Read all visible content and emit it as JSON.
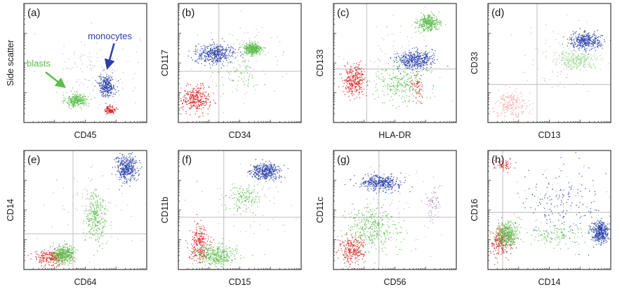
{
  "figure": {
    "type": "flow-cytometry-scatter-panel-grid"
  },
  "colors": {
    "blasts": "#5bbd4a",
    "monocytes": "#2a3fa8",
    "red_population": "#d92020",
    "background_events": "#b9b9b9",
    "quadrant_lines": "#bdbdbd",
    "frame": "#3a3a3a"
  },
  "chart_data": [
    {
      "panel": "(a)",
      "type": "scatter",
      "xlabel": "CD45",
      "ylabel": "Side scatter",
      "xlim": [
        0,
        1
      ],
      "ylim": [
        0,
        1
      ],
      "quadrant": null,
      "annotations": [
        {
          "text": "monocytes",
          "color": "#2a3fa8",
          "arrow": true,
          "x": 0.7,
          "y": 0.7,
          "arrow_to": [
            0.68,
            0.46
          ]
        },
        {
          "text": "blasts",
          "color": "#5bbd4a",
          "arrow": true,
          "x": 0.12,
          "y": 0.47,
          "arrow_to": [
            0.33,
            0.3
          ]
        }
      ],
      "series": [
        {
          "color": "#b9b9b9",
          "clusters": [
            {
              "cx": 0.55,
              "cy": 0.45,
              "sx": 0.35,
              "sy": 0.28,
              "n": 140
            }
          ]
        },
        {
          "color": "#5bbd4a",
          "clusters": [
            {
              "cx": 0.43,
              "cy": 0.19,
              "sx": 0.08,
              "sy": 0.05,
              "n": 280
            }
          ]
        },
        {
          "color": "#2a3fa8",
          "clusters": [
            {
              "cx": 0.67,
              "cy": 0.31,
              "sx": 0.06,
              "sy": 0.08,
              "n": 280
            }
          ]
        },
        {
          "color": "#d92020",
          "clusters": [
            {
              "cx": 0.7,
              "cy": 0.11,
              "sx": 0.04,
              "sy": 0.03,
              "n": 110
            }
          ]
        }
      ]
    },
    {
      "panel": "(b)",
      "type": "scatter",
      "xlabel": "CD34",
      "ylabel": "CD117",
      "xlim": [
        0,
        1
      ],
      "ylim": [
        0,
        1
      ],
      "quadrant": [
        0.33,
        0.43
      ],
      "annotations": [],
      "series": [
        {
          "color": "#b9b9b9",
          "clusters": [
            {
              "cx": 0.55,
              "cy": 0.55,
              "sx": 0.35,
              "sy": 0.3,
              "n": 90
            }
          ]
        },
        {
          "color": "#d92020",
          "clusters": [
            {
              "cx": 0.14,
              "cy": 0.2,
              "sx": 0.1,
              "sy": 0.1,
              "n": 300
            }
          ]
        },
        {
          "color": "#2a3fa8",
          "clusters": [
            {
              "cx": 0.3,
              "cy": 0.58,
              "sx": 0.15,
              "sy": 0.07,
              "n": 420
            }
          ]
        },
        {
          "color": "#5bbd4a",
          "clusters": [
            {
              "cx": 0.6,
              "cy": 0.62,
              "sx": 0.07,
              "sy": 0.05,
              "n": 340
            },
            {
              "cx": 0.48,
              "cy": 0.4,
              "sx": 0.15,
              "sy": 0.12,
              "n": 60
            }
          ]
        }
      ]
    },
    {
      "panel": "(c)",
      "type": "scatter",
      "xlabel": "HLA-DR",
      "ylabel": "CD133",
      "xlim": [
        0,
        1
      ],
      "ylim": [
        0,
        1
      ],
      "quadrant": [
        0.27,
        0.45
      ],
      "annotations": [],
      "series": [
        {
          "color": "#b9b9b9",
          "clusters": [
            {
              "cx": 0.55,
              "cy": 0.55,
              "sx": 0.35,
              "sy": 0.3,
              "n": 90
            }
          ]
        },
        {
          "color": "#5bbd4a",
          "clusters": [
            {
              "cx": 0.77,
              "cy": 0.84,
              "sx": 0.08,
              "sy": 0.06,
              "n": 330
            },
            {
              "cx": 0.55,
              "cy": 0.35,
              "sx": 0.18,
              "sy": 0.17,
              "n": 260
            }
          ]
        },
        {
          "color": "#2a3fa8",
          "clusters": [
            {
              "cx": 0.66,
              "cy": 0.53,
              "sx": 0.13,
              "sy": 0.07,
              "n": 420
            }
          ]
        },
        {
          "color": "#d92020",
          "clusters": [
            {
              "cx": 0.17,
              "cy": 0.36,
              "sx": 0.08,
              "sy": 0.11,
              "n": 300
            },
            {
              "cx": 0.68,
              "cy": 0.3,
              "sx": 0.05,
              "sy": 0.1,
              "n": 60
            }
          ]
        }
      ]
    },
    {
      "panel": "(d)",
      "type": "scatter",
      "xlabel": "CD13",
      "ylabel": "CD33",
      "xlim": [
        0,
        1
      ],
      "ylim": [
        0,
        1
      ],
      "quadrant": [
        0.4,
        0.32
      ],
      "annotations": [],
      "series": [
        {
          "color": "#b9b9b9",
          "clusters": [
            {
              "cx": 0.6,
              "cy": 0.55,
              "sx": 0.3,
              "sy": 0.25,
              "n": 90
            }
          ]
        },
        {
          "color": "#f0a8a8",
          "clusters": [
            {
              "cx": 0.19,
              "cy": 0.16,
              "sx": 0.12,
              "sy": 0.1,
              "n": 230
            }
          ]
        },
        {
          "color": "#a8dc9b",
          "clusters": [
            {
              "cx": 0.72,
              "cy": 0.53,
              "sx": 0.15,
              "sy": 0.07,
              "n": 320
            }
          ]
        },
        {
          "color": "#2a3fa8",
          "clusters": [
            {
              "cx": 0.79,
              "cy": 0.69,
              "sx": 0.12,
              "sy": 0.06,
              "n": 360
            }
          ]
        }
      ]
    },
    {
      "panel": "(e)",
      "type": "scatter",
      "xlabel": "CD64",
      "ylabel": "CD14",
      "xlim": [
        0,
        1
      ],
      "ylim": [
        0,
        1
      ],
      "quadrant": [
        0.4,
        0.3
      ],
      "annotations": [],
      "series": [
        {
          "color": "#b9b9b9",
          "clusters": [
            {
              "cx": 0.55,
              "cy": 0.55,
              "sx": 0.35,
              "sy": 0.3,
              "n": 70
            }
          ]
        },
        {
          "color": "#d92020",
          "clusters": [
            {
              "cx": 0.22,
              "cy": 0.1,
              "sx": 0.12,
              "sy": 0.06,
              "n": 230
            }
          ]
        },
        {
          "color": "#5bbd4a",
          "clusters": [
            {
              "cx": 0.32,
              "cy": 0.13,
              "sx": 0.08,
              "sy": 0.07,
              "n": 380
            },
            {
              "cx": 0.58,
              "cy": 0.45,
              "sx": 0.08,
              "sy": 0.2,
              "n": 280
            }
          ]
        },
        {
          "color": "#2a3fa8",
          "clusters": [
            {
              "cx": 0.83,
              "cy": 0.85,
              "sx": 0.08,
              "sy": 0.1,
              "n": 380
            }
          ]
        }
      ]
    },
    {
      "panel": "(f)",
      "type": "scatter",
      "xlabel": "CD15",
      "ylabel": "CD11b",
      "xlim": [
        0,
        1
      ],
      "ylim": [
        0,
        1
      ],
      "quadrant": [
        0.37,
        0.44
      ],
      "annotations": [],
      "series": [
        {
          "color": "#b9b9b9",
          "clusters": [
            {
              "cx": 0.55,
              "cy": 0.55,
              "sx": 0.35,
              "sy": 0.3,
              "n": 70
            }
          ]
        },
        {
          "color": "#d92020",
          "clusters": [
            {
              "cx": 0.17,
              "cy": 0.22,
              "sx": 0.07,
              "sy": 0.15,
              "n": 240
            }
          ]
        },
        {
          "color": "#5bbd4a",
          "clusters": [
            {
              "cx": 0.3,
              "cy": 0.12,
              "sx": 0.15,
              "sy": 0.08,
              "n": 340
            },
            {
              "cx": 0.54,
              "cy": 0.6,
              "sx": 0.12,
              "sy": 0.1,
              "n": 140
            }
          ]
        },
        {
          "color": "#2a3fa8",
          "clusters": [
            {
              "cx": 0.7,
              "cy": 0.83,
              "sx": 0.11,
              "sy": 0.06,
              "n": 380
            }
          ]
        }
      ]
    },
    {
      "panel": "(g)",
      "type": "scatter",
      "xlabel": "CD56",
      "ylabel": "CD11c",
      "xlim": [
        0,
        1
      ],
      "ylim": [
        0,
        1
      ],
      "quadrant": [
        0.37,
        0.44
      ],
      "annotations": [],
      "series": [
        {
          "color": "#b9b9b9",
          "clusters": [
            {
              "cx": 0.55,
              "cy": 0.5,
              "sx": 0.35,
              "sy": 0.3,
              "n": 70
            }
          ]
        },
        {
          "color": "#d92020",
          "clusters": [
            {
              "cx": 0.15,
              "cy": 0.17,
              "sx": 0.09,
              "sy": 0.1,
              "n": 240
            }
          ]
        },
        {
          "color": "#5bbd4a",
          "clusters": [
            {
              "cx": 0.3,
              "cy": 0.35,
              "sx": 0.2,
              "sy": 0.18,
              "n": 340
            }
          ]
        },
        {
          "color": "#2a3fa8",
          "clusters": [
            {
              "cx": 0.38,
              "cy": 0.73,
              "sx": 0.15,
              "sy": 0.06,
              "n": 380
            }
          ]
        },
        {
          "color": "#b07fb8",
          "clusters": [
            {
              "cx": 0.8,
              "cy": 0.55,
              "sx": 0.05,
              "sy": 0.15,
              "n": 60
            }
          ]
        }
      ]
    },
    {
      "panel": "(h)",
      "type": "scatter",
      "xlabel": "CD14",
      "ylabel": "CD16",
      "xlim": [
        0,
        1
      ],
      "ylim": [
        0,
        1
      ],
      "quadrant": [
        0.12,
        0.48
      ],
      "annotations": [],
      "series": [
        {
          "color": "#b9b9b9",
          "clusters": [
            {
              "cx": 0.55,
              "cy": 0.55,
              "sx": 0.35,
              "sy": 0.35,
              "n": 70
            }
          ]
        },
        {
          "color": "#2a3fa8",
          "clusters": [
            {
              "cx": 0.91,
              "cy": 0.32,
              "sx": 0.07,
              "sy": 0.08,
              "n": 380
            },
            {
              "cx": 0.6,
              "cy": 0.55,
              "sx": 0.3,
              "sy": 0.28,
              "n": 160
            }
          ]
        },
        {
          "color": "#d92020",
          "clusters": [
            {
              "cx": 0.1,
              "cy": 0.24,
              "sx": 0.08,
              "sy": 0.12,
              "n": 240
            },
            {
              "cx": 0.12,
              "cy": 0.88,
              "sx": 0.08,
              "sy": 0.05,
              "n": 60
            }
          ]
        },
        {
          "color": "#5bbd4a",
          "clusters": [
            {
              "cx": 0.15,
              "cy": 0.3,
              "sx": 0.08,
              "sy": 0.1,
              "n": 360
            },
            {
              "cx": 0.55,
              "cy": 0.3,
              "sx": 0.25,
              "sy": 0.08,
              "n": 120
            }
          ]
        }
      ]
    }
  ]
}
